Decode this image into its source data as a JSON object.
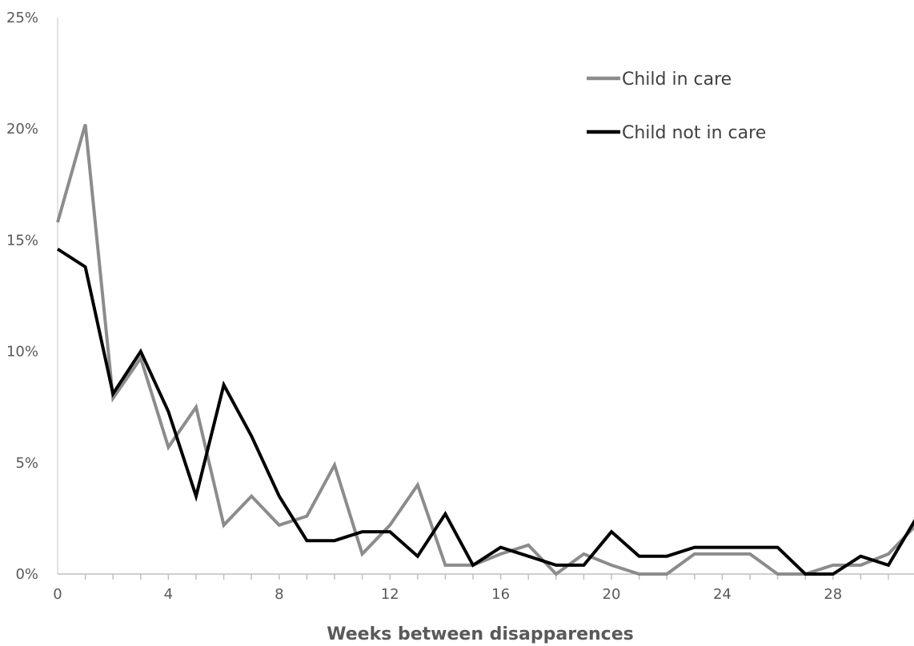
{
  "chart_data": {
    "type": "line",
    "title": "",
    "xlabel": "Weeks between disapparences",
    "ylabel": "",
    "x": [
      0,
      1,
      2,
      3,
      4,
      5,
      6,
      7,
      8,
      9,
      10,
      11,
      12,
      13,
      14,
      15,
      16,
      17,
      18,
      19,
      20,
      21,
      22,
      23,
      24,
      25,
      26,
      27,
      28,
      29,
      30,
      31
    ],
    "xlim": [
      0,
      31
    ],
    "xticks": [
      0,
      4,
      8,
      12,
      16,
      20,
      24,
      28
    ],
    "xtick_labels": [
      "0",
      "4",
      "8",
      "12",
      "16",
      "20",
      "24",
      "28"
    ],
    "ylim": [
      0,
      25
    ],
    "yticks": [
      0,
      5,
      10,
      15,
      20,
      25
    ],
    "ytick_labels": [
      "0%",
      "5%",
      "10%",
      "15%",
      "20%",
      "25%"
    ],
    "y_unit": "%",
    "grid": false,
    "legend_position": "top-right",
    "series": [
      {
        "name": "Child in care",
        "color": "#8c8c8c",
        "values": [
          15.8,
          20.2,
          7.9,
          9.7,
          5.7,
          7.5,
          2.2,
          3.5,
          2.2,
          2.6,
          4.9,
          0.9,
          2.2,
          4.0,
          0.4,
          0.4,
          0.9,
          1.3,
          0.0,
          0.9,
          0.4,
          0.0,
          0.0,
          0.9,
          0.9,
          0.9,
          0.0,
          0.0,
          0.4,
          0.4,
          0.9,
          2.2
        ]
      },
      {
        "name": "Child not in care",
        "color": "#000000",
        "values": [
          14.6,
          13.8,
          8.1,
          10.0,
          7.3,
          3.5,
          8.5,
          6.2,
          3.5,
          1.5,
          1.5,
          1.9,
          1.9,
          0.8,
          2.7,
          0.4,
          1.2,
          0.8,
          0.4,
          0.4,
          1.9,
          0.8,
          0.8,
          1.2,
          1.2,
          1.2,
          1.2,
          0.0,
          0.0,
          0.8,
          0.4,
          2.5
        ]
      }
    ]
  }
}
